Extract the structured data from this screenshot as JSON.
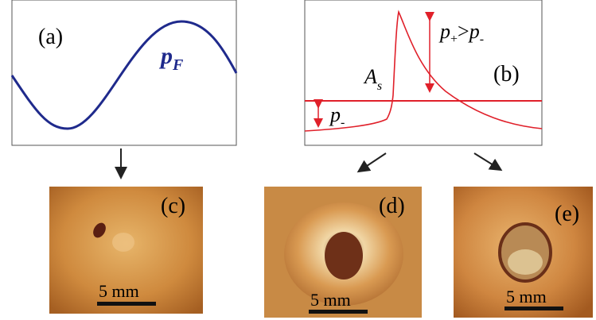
{
  "panels": {
    "a": {
      "label": "(a)",
      "symbol": {
        "main": "p",
        "sub": "F"
      }
    },
    "b": {
      "label": "(b)",
      "area": {
        "main": "A",
        "sub": "s"
      },
      "relation": {
        "p1": "p",
        "s1": "+",
        "op": ">",
        "p2": "p",
        "s2": "-"
      },
      "low": {
        "main": "p",
        "sub": "-"
      }
    },
    "c": {
      "label": "(c)",
      "scale": "5 mm"
    },
    "d": {
      "label": "(d)",
      "scale": "5 mm"
    },
    "e": {
      "label": "(e)",
      "scale": "5 mm"
    }
  }
}
